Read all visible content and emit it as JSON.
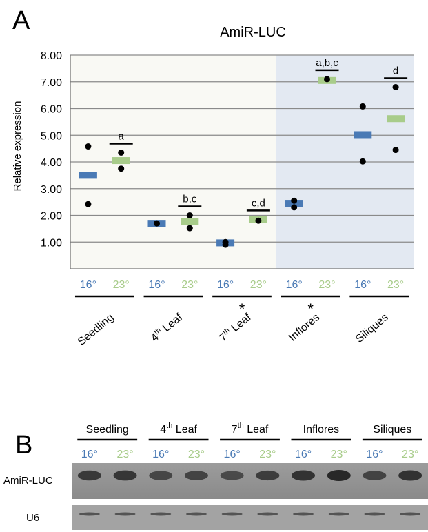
{
  "panel_a": {
    "letter": "A",
    "chart_data": {
      "type": "scatter",
      "title": "AmiR-LUC",
      "xlabel": "",
      "ylabel": "Relative expression",
      "ylim": [
        0,
        8
      ],
      "yticks": [
        "8.00",
        "7.00",
        "6.00",
        "5.00",
        "4.00",
        "3.00",
        "2.00",
        "1.00"
      ],
      "grid": true,
      "legend": "none",
      "temps": [
        "16°",
        "23°"
      ],
      "temp_colors": {
        "16°": "#4a7ab5",
        "23°": "#a8cc8a"
      },
      "groups": [
        {
          "name": "Seedling",
          "asterisk": "",
          "sig_letter": "a",
          "means": {
            "16°": 3.5,
            "23°": 4.05
          },
          "points": {
            "16°": [
              4.58,
              2.42
            ],
            "23°": [
              4.35,
              3.75
            ]
          }
        },
        {
          "name": "4th Leaf",
          "asterisk": "",
          "sig_letter": "b,c",
          "means": {
            "16°": 1.7,
            "23°": 1.78
          },
          "points": {
            "16°": [
              1.7
            ],
            "23°": [
              2.0,
              1.52
            ]
          }
        },
        {
          "name": "7th Leaf",
          "asterisk": "*",
          "sig_letter": "c,d",
          "means": {
            "16°": 0.97,
            "23°": 1.85
          },
          "points": {
            "16°": [
              1.0,
              0.9
            ],
            "23°": [
              1.8
            ]
          }
        },
        {
          "name": "Inflores",
          "asterisk": "*",
          "sig_letter": "a,b,c",
          "means": {
            "16°": 2.45,
            "23°": 7.05
          },
          "points": {
            "16°": [
              2.55,
              2.3
            ],
            "23°": [
              7.1
            ]
          }
        },
        {
          "name": "Siliques",
          "asterisk": "",
          "sig_letter": "d",
          "means": {
            "16°": 5.02,
            "23°": 5.62
          },
          "points": {
            "16°": [
              6.08,
              4.02
            ],
            "23°": [
              6.8,
              4.45
            ]
          }
        }
      ],
      "shaded_groups": [
        "Inflores",
        "Siliques"
      ],
      "colors": {
        "plot_bg": "#f9f9f4",
        "shade_bg": "#e3e9f2",
        "grid": "#8a8a8a"
      }
    }
  },
  "panel_b": {
    "letter": "B",
    "groups": [
      "Seedling",
      "4th Leaf",
      "7th Leaf",
      "Inflores",
      "Siliques"
    ],
    "temps": [
      "16°",
      "23°"
    ],
    "row_labels": [
      "AmiR-LUC",
      "U6"
    ]
  }
}
